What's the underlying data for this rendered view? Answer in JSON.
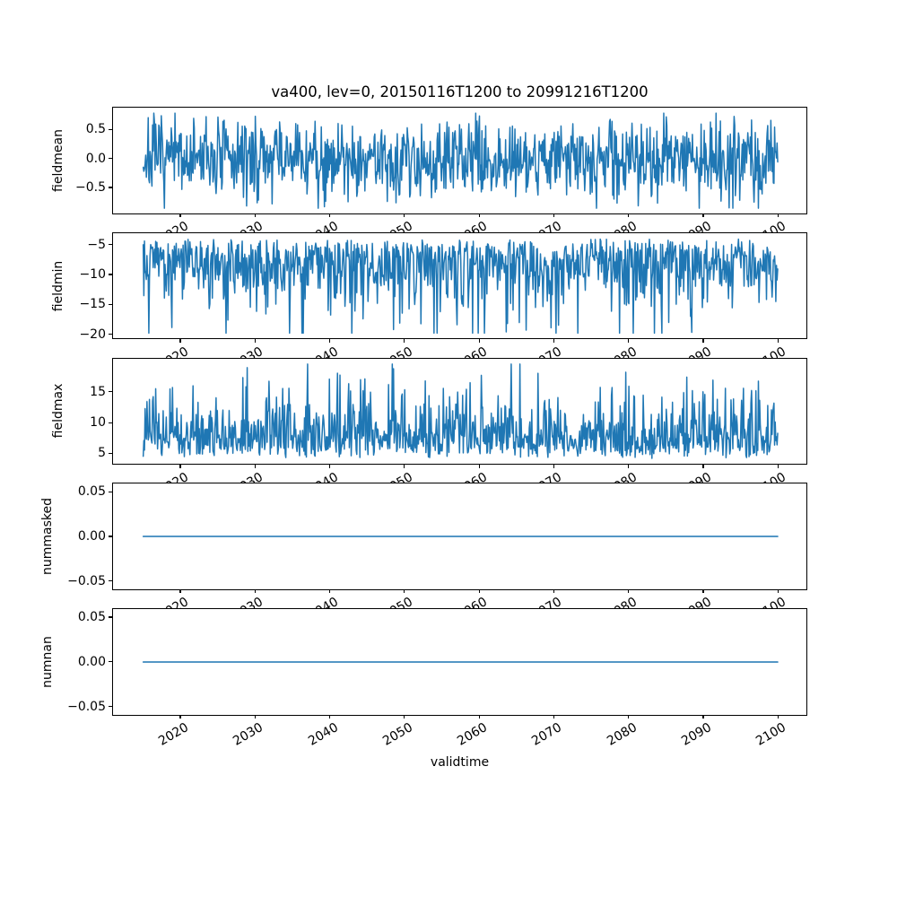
{
  "title": "va400, lev=0, 20150116T1200 to 20991216T1200",
  "xlabel": "validtime",
  "chart_data": {
    "type": "line",
    "title": "va400, lev=0, 20150116T1200 to 20991216T1200",
    "xlabel": "validtime",
    "legend": "none",
    "grid": false,
    "line": {
      "color": "#1f77b4",
      "width": 1.5
    },
    "x_axis": {
      "xlim": [
        2011.0,
        2103.8
      ],
      "tick_values": [
        2020,
        2030,
        2040,
        2050,
        2060,
        2070,
        2080,
        2090,
        2100
      ],
      "tick_labels": [
        "2020",
        "2030",
        "2040",
        "2050",
        "2060",
        "2070",
        "2080",
        "2090",
        "2100"
      ],
      "tick_rotation_deg": 30,
      "data_start_year": 2015.043,
      "data_end_year": 2099.958,
      "start_label": "20150116T1200",
      "end_label": "20991216T1200",
      "n_points": 1020,
      "cadence": "monthly"
    },
    "subplots": [
      {
        "ylabel": "fieldmean",
        "ytick_values": [
          0.5,
          0.0,
          -0.5
        ],
        "ytick_labels": [
          "0.5",
          "0.0",
          "−0.5"
        ],
        "ylim": [
          -0.94,
          0.875
        ],
        "series": {
          "kind": "uniform-sum-noise",
          "mean": 0.0,
          "spread": 0.59,
          "min": -0.85,
          "max": 0.78,
          "seed": 7
        }
      },
      {
        "ylabel": "fieldmin",
        "ytick_values": [
          -5,
          -10,
          -15,
          -20
        ],
        "ytick_labels": [
          "−5",
          "−10",
          "−15",
          "−20"
        ],
        "ylim": [
          -20.68,
          -3.06
        ],
        "series": {
          "kind": "gamma-neg",
          "base": -3.9,
          "scale": 2.6,
          "min": -19.84,
          "max": -3.9,
          "seed": 12
        }
      },
      {
        "ylabel": "fieldmax",
        "ytick_values": [
          15,
          10,
          5
        ],
        "ytick_labels": [
          "15",
          "10",
          "5"
        ],
        "ylim": [
          3.32,
          20.45
        ],
        "series": {
          "kind": "gamma-pos",
          "base": 4.18,
          "scale": 2.15,
          "min": 4.18,
          "max": 19.59,
          "seed": 23
        }
      },
      {
        "ylabel": "nummasked",
        "ytick_values": [
          0.05,
          0.0,
          -0.05
        ],
        "ytick_labels": [
          "0.05",
          "0.00",
          "−0.05"
        ],
        "ylim": [
          -0.059,
          0.059
        ],
        "series": {
          "kind": "constant",
          "value": 0.0
        }
      },
      {
        "ylabel": "numnan",
        "ytick_values": [
          0.05,
          0.0,
          -0.05
        ],
        "ytick_labels": [
          "0.05",
          "0.00",
          "−0.05"
        ],
        "ylim": [
          -0.059,
          0.059
        ],
        "series": {
          "kind": "constant",
          "value": 0.0
        }
      }
    ]
  }
}
